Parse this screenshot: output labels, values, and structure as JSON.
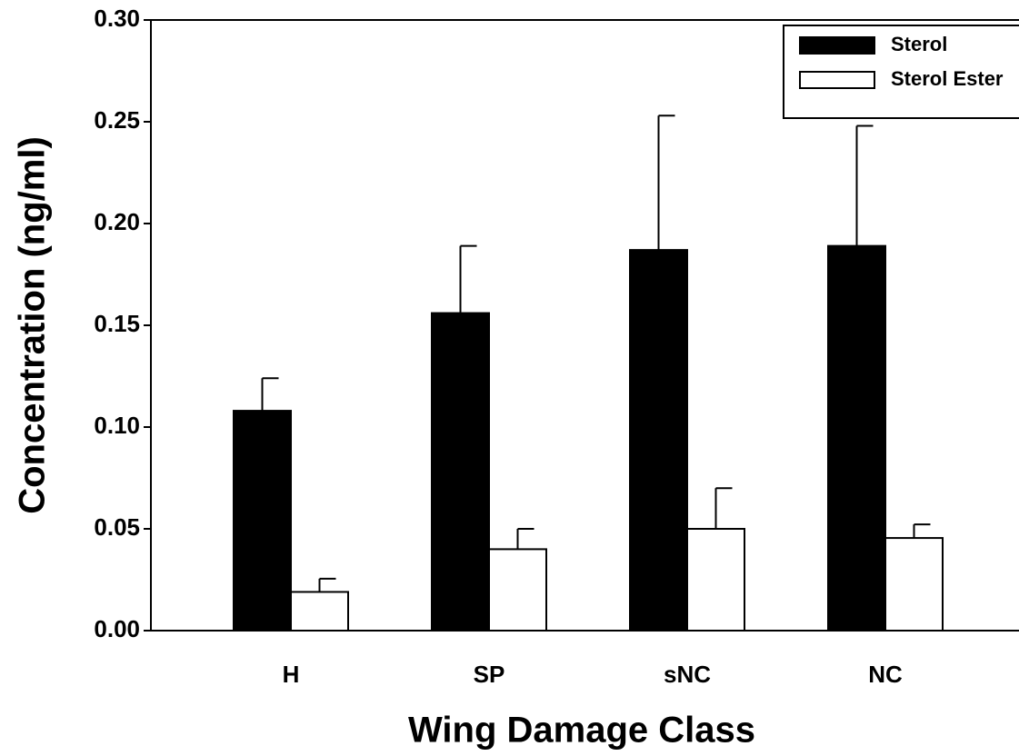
{
  "chart_data": {
    "type": "bar",
    "x_label": "Wing Damage Class",
    "y_label": "Concentration (ng/ml)",
    "categories": [
      "H",
      "SP",
      "sNC",
      "NC"
    ],
    "series": [
      {
        "name": "Sterol",
        "color": "#000000",
        "values": [
          0.108,
          0.156,
          0.187,
          0.189
        ],
        "errors": [
          0.016,
          0.033,
          0.066,
          0.059
        ]
      },
      {
        "name": "Sterol Ester",
        "color": "#ffffff",
        "values": [
          0.019,
          0.04,
          0.05,
          0.0455
        ],
        "errors": [
          0.0065,
          0.01,
          0.02,
          0.0067
        ]
      }
    ],
    "ylim": [
      0,
      0.3
    ],
    "yticks": [
      {
        "value": 0,
        "label": "0.00"
      },
      {
        "value": 0.05,
        "label": "0.05"
      },
      {
        "value": 0.1,
        "label": "0.10"
      },
      {
        "value": 0.15,
        "label": "0.15"
      },
      {
        "value": 0.2,
        "label": "0.20"
      },
      {
        "value": 0.25,
        "label": "0.25"
      },
      {
        "value": 0.3,
        "label": "0.30"
      }
    ],
    "legend": "upper right"
  }
}
